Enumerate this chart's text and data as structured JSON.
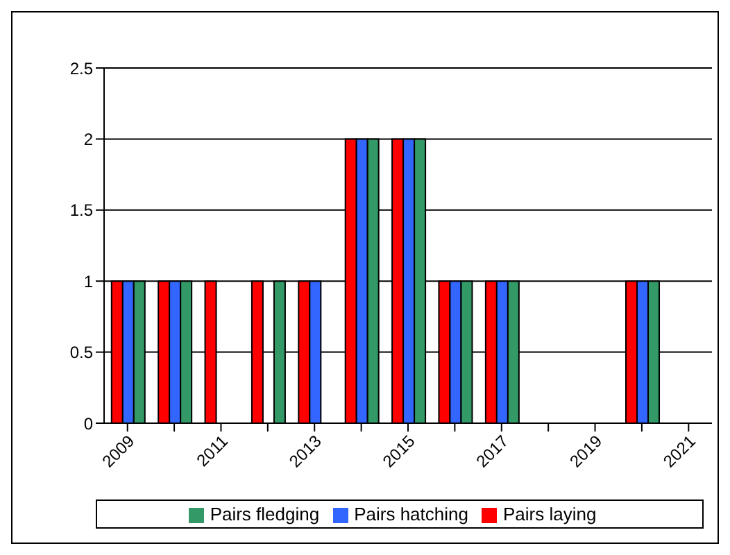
{
  "chart_data": {
    "type": "bar",
    "categories": [
      "2009",
      null,
      "2011",
      null,
      "2013",
      null,
      "2015",
      null,
      "2017",
      null,
      "2019",
      null,
      "2021"
    ],
    "series": [
      {
        "name": "Pairs laying",
        "color": "#ff0000",
        "values": [
          1,
          1,
          1,
          1,
          1,
          2,
          2,
          1,
          1,
          0,
          0,
          1,
          0
        ]
      },
      {
        "name": "Pairs hatching",
        "color": "#3366ff",
        "values": [
          1,
          1,
          0,
          0,
          1,
          2,
          2,
          1,
          1,
          0,
          0,
          1,
          0
        ]
      },
      {
        "name": "Pairs fledging",
        "color": "#339966",
        "values": [
          1,
          1,
          0,
          1,
          0,
          2,
          2,
          1,
          1,
          0,
          0,
          1,
          0
        ]
      }
    ],
    "ylim": [
      0,
      2.5
    ],
    "yticks": [
      0,
      0.5,
      1,
      1.5,
      2,
      2.5
    ],
    "grid": "y",
    "legend": "bottom"
  }
}
